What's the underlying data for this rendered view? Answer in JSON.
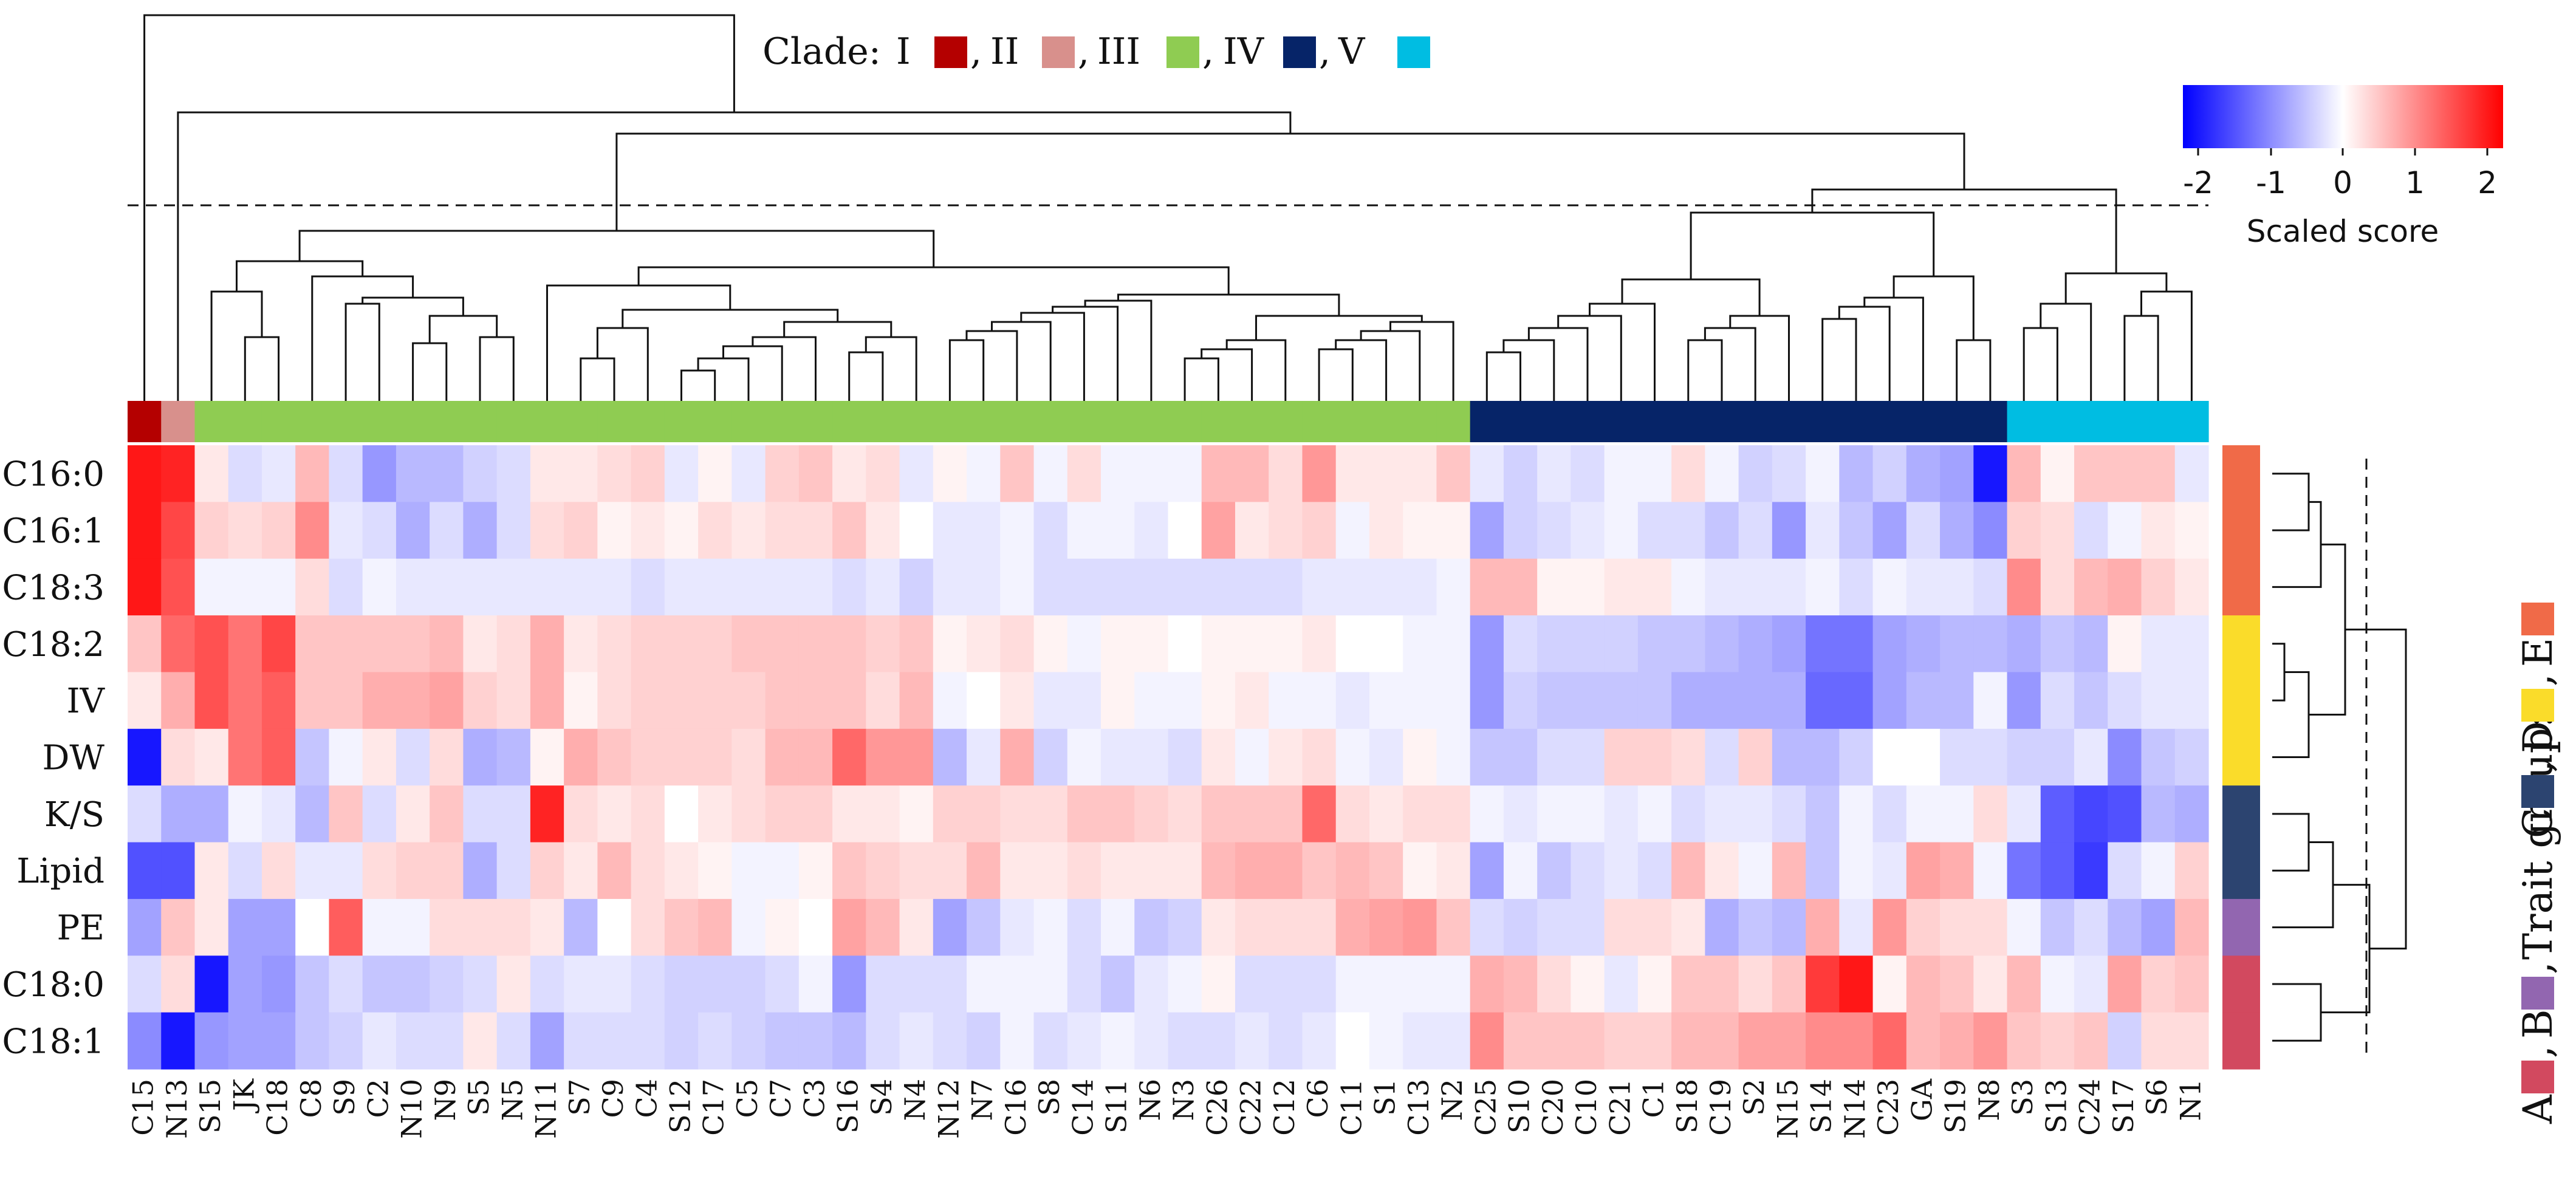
{
  "chart_data": {
    "type": "heatmap",
    "title": "",
    "clade_legend": {
      "prefix": "Clade:",
      "items": [
        {
          "label": "I",
          "color": "#b40000"
        },
        {
          "label": "II",
          "color": "#d8908c"
        },
        {
          "label": "III",
          "color": "#8fcc52"
        },
        {
          "label": "IV",
          "color": "#062468"
        },
        {
          "label": "V",
          "color": "#00bde2"
        }
      ]
    },
    "colorbar": {
      "title": "Scaled score",
      "ticks": [
        -2,
        -1,
        0,
        1,
        2
      ],
      "range": [
        -2.2,
        2.2
      ],
      "colors": [
        "#0000ff",
        "#ffffff",
        "#ff0000"
      ]
    },
    "trait_legend": {
      "title": "Trait group:",
      "items": [
        {
          "label": "A",
          "color": "#d2495f"
        },
        {
          "label": "B",
          "color": "#9266b0"
        },
        {
          "label": "C",
          "color": "#2c4470"
        },
        {
          "label": "D",
          "color": "#fadc2a"
        },
        {
          "label": "E",
          "color": "#f06a48"
        }
      ]
    },
    "columns": [
      "C15",
      "N13",
      "S15",
      "JK",
      "C18",
      "C8",
      "S9",
      "C2",
      "N10",
      "N9",
      "S5",
      "N5",
      "N11",
      "S7",
      "C9",
      "C4",
      "S12",
      "C17",
      "C5",
      "C7",
      "C3",
      "S16",
      "S4",
      "N4",
      "N12",
      "N7",
      "C16",
      "S8",
      "C14",
      "S11",
      "N6",
      "N3",
      "C26",
      "C22",
      "C12",
      "C6",
      "C11",
      "S1",
      "C13",
      "N2",
      "C25",
      "S10",
      "C20",
      "C10",
      "C21",
      "C1",
      "S18",
      "C19",
      "S2",
      "N15",
      "S14",
      "N14",
      "C23",
      "GA",
      "S19",
      "N8",
      "S3",
      "S13",
      "C24",
      "S17",
      "S6",
      "N1"
    ],
    "column_clades": [
      "I",
      "II",
      "III",
      "III",
      "III",
      "III",
      "III",
      "III",
      "III",
      "III",
      "III",
      "III",
      "III",
      "III",
      "III",
      "III",
      "III",
      "III",
      "III",
      "III",
      "III",
      "III",
      "III",
      "III",
      "III",
      "III",
      "III",
      "III",
      "III",
      "III",
      "III",
      "III",
      "III",
      "III",
      "III",
      "III",
      "III",
      "III",
      "III",
      "III",
      "IV",
      "IV",
      "IV",
      "IV",
      "IV",
      "IV",
      "IV",
      "IV",
      "IV",
      "IV",
      "IV",
      "IV",
      "IV",
      "IV",
      "IV",
      "IV",
      "V",
      "V",
      "V",
      "V",
      "V",
      "V"
    ],
    "rows": [
      "C16:0",
      "C16:1",
      "C18:3",
      "C18:2",
      "IV",
      "DW",
      "K/S",
      "Lipid",
      "PE",
      "C18:0",
      "C18:1"
    ],
    "row_groups": [
      "E",
      "E",
      "E",
      "D",
      "D",
      "D",
      "C",
      "C",
      "B",
      "A",
      "A"
    ],
    "values": [
      [
        2.0,
        1.9,
        0.2,
        -0.3,
        -0.2,
        0.6,
        -0.3,
        -0.9,
        -0.6,
        -0.6,
        -0.4,
        -0.3,
        0.2,
        0.2,
        0.3,
        0.4,
        -0.2,
        0.1,
        -0.2,
        0.4,
        0.5,
        0.2,
        0.3,
        -0.2,
        0.1,
        -0.1,
        0.5,
        -0.1,
        0.3,
        -0.1,
        -0.1,
        -0.1,
        0.6,
        0.6,
        0.3,
        0.9,
        0.2,
        0.2,
        0.2,
        0.5,
        -0.2,
        -0.4,
        -0.2,
        -0.3,
        -0.1,
        -0.1,
        0.3,
        -0.1,
        -0.4,
        -0.3,
        -0.1,
        -0.6,
        -0.4,
        -0.7,
        -0.8,
        -2.0,
        0.6,
        0.1,
        0.5,
        0.5,
        0.5,
        -0.2
      ],
      [
        2.0,
        1.6,
        0.4,
        0.3,
        0.4,
        1.0,
        -0.2,
        -0.3,
        -0.7,
        -0.3,
        -0.7,
        -0.3,
        0.3,
        0.4,
        0.1,
        0.2,
        0.1,
        0.3,
        0.2,
        0.3,
        0.3,
        0.5,
        0.2,
        0.0,
        -0.2,
        -0.2,
        -0.1,
        -0.3,
        -0.1,
        -0.1,
        -0.2,
        0.0,
        0.8,
        0.2,
        0.3,
        0.4,
        -0.1,
        0.2,
        0.1,
        0.1,
        -0.8,
        -0.4,
        -0.3,
        -0.2,
        -0.1,
        -0.3,
        -0.3,
        -0.5,
        -0.3,
        -0.9,
        -0.2,
        -0.5,
        -0.8,
        -0.3,
        -0.7,
        -1.0,
        0.4,
        0.3,
        -0.3,
        -0.1,
        0.2,
        0.1
      ],
      [
        2.0,
        1.5,
        -0.1,
        -0.1,
        -0.1,
        0.3,
        -0.3,
        -0.1,
        -0.2,
        -0.2,
        -0.2,
        -0.2,
        -0.2,
        -0.2,
        -0.2,
        -0.3,
        -0.2,
        -0.2,
        -0.2,
        -0.2,
        -0.2,
        -0.3,
        -0.2,
        -0.4,
        -0.2,
        -0.2,
        -0.1,
        -0.3,
        -0.3,
        -0.3,
        -0.3,
        -0.3,
        -0.3,
        -0.3,
        -0.3,
        -0.2,
        -0.2,
        -0.2,
        -0.2,
        -0.1,
        0.6,
        0.6,
        0.1,
        0.1,
        0.2,
        0.2,
        -0.1,
        -0.2,
        -0.2,
        -0.2,
        -0.1,
        -0.3,
        -0.1,
        -0.2,
        -0.2,
        -0.3,
        1.0,
        0.3,
        0.6,
        0.7,
        0.4,
        0.2
      ],
      [
        0.5,
        1.3,
        1.5,
        1.2,
        1.6,
        0.5,
        0.5,
        0.5,
        0.5,
        0.6,
        0.2,
        0.3,
        0.7,
        0.2,
        0.3,
        0.4,
        0.4,
        0.4,
        0.5,
        0.5,
        0.5,
        0.5,
        0.4,
        0.5,
        0.1,
        0.2,
        0.3,
        0.1,
        -0.1,
        0.1,
        0.1,
        0.0,
        0.1,
        0.1,
        0.1,
        0.2,
        0.0,
        0.0,
        -0.1,
        -0.1,
        -0.9,
        -0.3,
        -0.4,
        -0.4,
        -0.4,
        -0.5,
        -0.5,
        -0.6,
        -0.7,
        -0.8,
        -1.2,
        -1.2,
        -0.8,
        -0.7,
        -0.6,
        -0.6,
        -0.7,
        -0.5,
        -0.6,
        0.1,
        -0.2,
        -0.2
      ],
      [
        0.2,
        0.7,
        1.5,
        1.2,
        1.4,
        0.5,
        0.5,
        0.7,
        0.7,
        0.8,
        0.4,
        0.3,
        0.7,
        0.1,
        0.3,
        0.4,
        0.4,
        0.4,
        0.4,
        0.5,
        0.5,
        0.5,
        0.3,
        0.6,
        -0.1,
        0.0,
        0.2,
        -0.2,
        -0.2,
        0.1,
        -0.1,
        -0.1,
        0.1,
        0.2,
        -0.1,
        -0.1,
        -0.2,
        -0.1,
        -0.1,
        -0.1,
        -0.9,
        -0.4,
        -0.5,
        -0.5,
        -0.5,
        -0.5,
        -0.7,
        -0.7,
        -0.7,
        -0.7,
        -1.3,
        -1.3,
        -0.8,
        -0.6,
        -0.6,
        -0.1,
        -0.9,
        -0.3,
        -0.5,
        -0.3,
        -0.2,
        -0.2
      ],
      [
        -2.0,
        0.3,
        0.2,
        1.2,
        1.4,
        -0.5,
        -0.1,
        0.2,
        -0.3,
        0.3,
        -0.7,
        -0.6,
        0.1,
        0.7,
        0.5,
        0.4,
        0.4,
        0.4,
        0.3,
        0.6,
        0.6,
        1.3,
        0.9,
        0.9,
        -0.6,
        -0.2,
        0.7,
        -0.4,
        -0.1,
        -0.2,
        -0.2,
        -0.3,
        0.2,
        -0.1,
        0.2,
        0.3,
        -0.1,
        -0.2,
        0.1,
        -0.1,
        -0.5,
        -0.5,
        -0.3,
        -0.3,
        0.4,
        0.4,
        0.3,
        -0.3,
        0.4,
        -0.6,
        -0.6,
        -0.4,
        0.0,
        0.0,
        -0.3,
        -0.3,
        -0.4,
        -0.4,
        -0.2,
        -1.0,
        -0.5,
        -0.4
      ],
      [
        -0.3,
        -0.7,
        -0.7,
        -0.1,
        -0.2,
        -0.6,
        0.5,
        -0.3,
        0.2,
        0.5,
        -0.3,
        -0.3,
        1.9,
        0.3,
        0.2,
        0.3,
        0.0,
        0.2,
        0.3,
        0.4,
        0.4,
        0.2,
        0.2,
        0.1,
        0.4,
        0.4,
        0.3,
        0.3,
        0.5,
        0.5,
        0.4,
        0.3,
        0.5,
        0.5,
        0.5,
        1.3,
        0.3,
        0.2,
        0.3,
        0.3,
        -0.1,
        -0.2,
        -0.1,
        -0.1,
        -0.2,
        -0.1,
        -0.3,
        -0.2,
        -0.2,
        -0.3,
        -0.5,
        -0.1,
        -0.3,
        -0.1,
        -0.1,
        0.3,
        -0.2,
        -1.4,
        -1.6,
        -1.5,
        -0.6,
        -0.7
      ],
      [
        -1.5,
        -1.5,
        0.2,
        -0.3,
        0.3,
        -0.2,
        -0.2,
        0.3,
        0.4,
        0.4,
        -0.7,
        -0.3,
        0.4,
        0.2,
        0.6,
        0.3,
        0.2,
        0.1,
        -0.1,
        -0.1,
        0.1,
        0.5,
        0.4,
        0.3,
        0.3,
        0.6,
        0.2,
        0.2,
        0.3,
        0.2,
        0.2,
        0.2,
        0.6,
        0.7,
        0.7,
        0.5,
        0.6,
        0.5,
        0.1,
        0.2,
        -0.8,
        -0.1,
        -0.5,
        -0.3,
        -0.2,
        -0.3,
        0.6,
        0.2,
        -0.1,
        0.6,
        -0.5,
        -0.1,
        -0.2,
        0.8,
        0.7,
        -0.1,
        -1.2,
        -1.4,
        -1.7,
        -0.3,
        -0.1,
        0.4
      ],
      [
        -0.8,
        0.5,
        0.2,
        -0.8,
        -0.8,
        0.0,
        1.4,
        -0.1,
        -0.1,
        0.3,
        0.3,
        0.3,
        0.2,
        -0.6,
        0.0,
        0.3,
        0.5,
        0.6,
        -0.1,
        0.1,
        0.0,
        0.8,
        0.6,
        0.2,
        -0.8,
        -0.5,
        -0.2,
        -0.1,
        -0.3,
        -0.1,
        -0.5,
        -0.4,
        0.2,
        0.3,
        0.3,
        0.3,
        0.7,
        0.8,
        0.9,
        0.5,
        -0.3,
        -0.4,
        -0.3,
        -0.3,
        0.3,
        0.3,
        0.2,
        -0.7,
        -0.5,
        -0.6,
        0.7,
        -0.2,
        0.9,
        0.4,
        0.3,
        0.3,
        -0.1,
        -0.5,
        -0.3,
        -0.6,
        -0.8,
        0.6
      ],
      [
        -0.3,
        0.3,
        -2.0,
        -0.8,
        -0.9,
        -0.5,
        -0.3,
        -0.5,
        -0.5,
        -0.4,
        -0.3,
        0.2,
        -0.3,
        -0.2,
        -0.2,
        -0.3,
        -0.4,
        -0.4,
        -0.4,
        -0.3,
        -0.1,
        -0.9,
        -0.3,
        -0.3,
        -0.3,
        -0.1,
        -0.1,
        -0.1,
        -0.3,
        -0.5,
        -0.2,
        -0.1,
        0.1,
        -0.3,
        -0.3,
        -0.3,
        -0.1,
        -0.1,
        -0.1,
        -0.1,
        0.7,
        0.6,
        0.3,
        0.1,
        -0.2,
        0.1,
        0.5,
        0.5,
        0.3,
        0.5,
        1.7,
        2.0,
        0.1,
        0.6,
        0.5,
        0.2,
        0.6,
        -0.1,
        -0.2,
        0.8,
        0.4,
        0.5
      ],
      [
        -1.0,
        -2.0,
        -0.9,
        -0.8,
        -0.8,
        -0.5,
        -0.4,
        -0.2,
        -0.3,
        -0.3,
        0.2,
        -0.3,
        -0.8,
        -0.3,
        -0.3,
        -0.3,
        -0.4,
        -0.3,
        -0.4,
        -0.5,
        -0.5,
        -0.6,
        -0.3,
        -0.2,
        -0.3,
        -0.4,
        -0.1,
        -0.3,
        -0.2,
        -0.1,
        -0.2,
        -0.3,
        -0.3,
        -0.2,
        -0.3,
        -0.2,
        0.0,
        -0.1,
        -0.2,
        -0.2,
        1.0,
        0.5,
        0.5,
        0.5,
        0.4,
        0.4,
        0.6,
        0.6,
        0.8,
        0.8,
        1.0,
        1.0,
        1.3,
        0.6,
        0.7,
        0.9,
        0.5,
        0.4,
        0.5,
        -0.4,
        0.3,
        0.3
      ]
    ]
  }
}
